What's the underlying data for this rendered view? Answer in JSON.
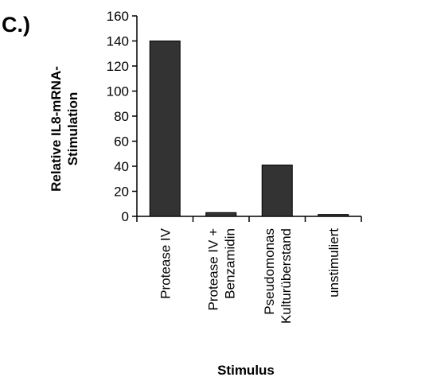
{
  "panel_label": "C.)",
  "chart_data": {
    "type": "bar",
    "categories": [
      [
        "Protease IV"
      ],
      [
        "Protease IV +",
        "Benzamidin"
      ],
      [
        "Pseudomonas",
        "Kulturüberstand"
      ],
      [
        "unstimuliert"
      ]
    ],
    "values": [
      140,
      3,
      41,
      1.5
    ],
    "ylabel_lines": [
      "Relative IL8-mRNA-",
      "Stimulation"
    ],
    "xlabel": "Stimulus",
    "ylim": [
      0,
      160
    ],
    "yticks": [
      0,
      20,
      40,
      60,
      80,
      100,
      120,
      140,
      160
    ],
    "grid": false,
    "legend": "none",
    "bar_color": "#333333"
  }
}
